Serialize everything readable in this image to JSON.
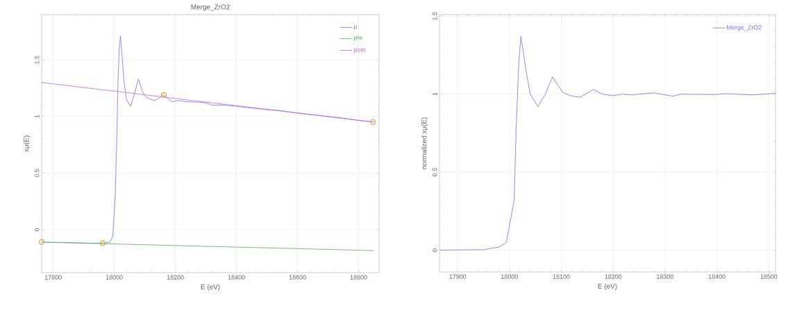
{
  "chart_data": [
    {
      "type": "line",
      "title": "Merge_ZrO2",
      "xlabel": "E (eV)",
      "ylabel": "xμ(E)",
      "xlim": [
        17762,
        18867
      ],
      "ylim": [
        -0.38,
        1.9
      ],
      "xticks": [
        17800,
        18000,
        18200,
        18400,
        18600,
        18800
      ],
      "yticks": [
        0,
        0.5,
        1,
        1.5
      ],
      "grid": true,
      "legend": "top right",
      "series": [
        {
          "name": "μ",
          "color": "#7070f0",
          "x": [
            17762,
            17900,
            17965,
            17985,
            17995,
            18003,
            18008,
            18012,
            18016,
            18020,
            18025,
            18032,
            18040,
            18053,
            18066,
            18079,
            18092,
            18104,
            18120,
            18132,
            18145,
            18160,
            18175,
            18189,
            18210,
            18240,
            18280,
            18300,
            18320,
            18360,
            18400,
            18450,
            18500,
            18550,
            18600,
            18650,
            18700,
            18750,
            18800,
            18850
          ],
          "values": [
            -0.11,
            -0.118,
            -0.12,
            -0.11,
            -0.06,
            0.3,
            0.8,
            1.3,
            1.6,
            1.71,
            1.55,
            1.3,
            1.15,
            1.09,
            1.2,
            1.33,
            1.22,
            1.17,
            1.15,
            1.14,
            1.16,
            1.19,
            1.16,
            1.13,
            1.14,
            1.13,
            1.125,
            1.12,
            1.1,
            1.1,
            1.09,
            1.075,
            1.06,
            1.05,
            1.03,
            1.015,
            1.0,
            0.985,
            0.965,
            0.95
          ]
        },
        {
          "name": "pre",
          "color": "#50b050",
          "x": [
            17762,
            18850
          ],
          "values": [
            -0.11,
            -0.185
          ]
        },
        {
          "name": "post",
          "color": "#c060f0",
          "x": [
            17762,
            18850
          ],
          "values": [
            1.3,
            0.95
          ]
        },
        {
          "type": "scatter",
          "marker": "circle",
          "color": "#f0a030",
          "x": [
            17762,
            17962,
            18162,
            18847
          ],
          "values": [
            -0.11,
            -0.12,
            1.19,
            0.95
          ]
        }
      ]
    },
    {
      "type": "line",
      "xlabel": "E (eV)",
      "ylabel": "normalized xμ(E)",
      "xlim": [
        17865,
        18513
      ],
      "ylim": [
        -0.14,
        1.51
      ],
      "xticks": [
        17900,
        18000,
        18100,
        18200,
        18300,
        18400,
        18500
      ],
      "yticks": [
        0,
        0.5,
        1,
        1.5
      ],
      "grid": true,
      "legend": "top right",
      "series": [
        {
          "name": "Merge_ZrO2",
          "color": "#7070f0",
          "x": [
            17865,
            17950,
            17980,
            17994,
            18009,
            18013,
            18018,
            18022,
            18033,
            18040,
            18055,
            18069,
            18083,
            18103,
            18117,
            18136,
            18162,
            18179,
            18200,
            18217,
            18236,
            18279,
            18315,
            18331,
            18394,
            18418,
            18470,
            18513
          ],
          "values": [
            0,
            0.003,
            0.02,
            0.05,
            0.32,
            0.79,
            1.2,
            1.37,
            1.13,
            1.0,
            0.92,
            1.0,
            1.11,
            1.01,
            0.99,
            0.98,
            1.03,
            1.0,
            0.99,
            1.0,
            0.995,
            1.008,
            0.987,
            1.0,
            0.997,
            1.003,
            0.995,
            1.005
          ]
        }
      ]
    }
  ]
}
